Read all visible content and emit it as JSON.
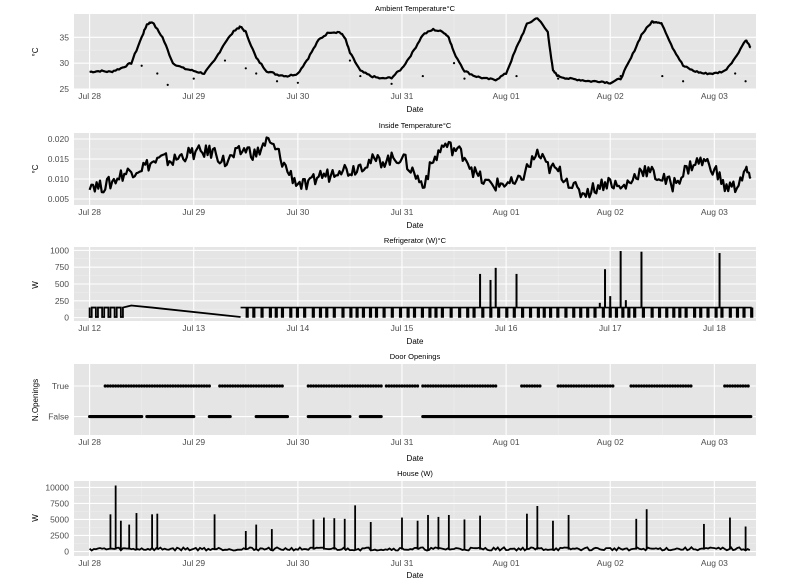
{
  "colors": {
    "panel": "#e5e5e5",
    "grid_major": "#ffffff",
    "grid_minor": "#f0f0f0",
    "line": "#000000",
    "text": "#4d4d4d",
    "title": "#000000"
  },
  "chart_data": [
    {
      "type": "line",
      "title": "Ambient Temperature°C",
      "xlabel": "Date",
      "ylabel": "°C",
      "x_ticks": [
        "Jul 28",
        "Jul 29",
        "Jul 30",
        "Jul 31",
        "Aug 01",
        "Aug 02",
        "Aug 03"
      ],
      "xlim": [
        -0.15,
        6.4
      ],
      "y_ticks": [
        "25",
        "30",
        "35"
      ],
      "y_tick_values": [
        25,
        30,
        35
      ],
      "ylim": [
        25,
        39.5
      ],
      "series": [
        {
          "name": "Ambient Temperature",
          "x": [
            0,
            0.1,
            0.2,
            0.3,
            0.4,
            0.5,
            0.55,
            0.6,
            0.7,
            0.8,
            0.9,
            1.0,
            1.1,
            1.2,
            1.3,
            1.4,
            1.45,
            1.5,
            1.6,
            1.7,
            1.8,
            1.9,
            2.0,
            2.1,
            2.2,
            2.3,
            2.4,
            2.45,
            2.5,
            2.6,
            2.7,
            2.8,
            2.9,
            3.0,
            3.1,
            3.2,
            3.3,
            3.4,
            3.45,
            3.5,
            3.6,
            3.7,
            3.8,
            3.9,
            4.0,
            4.1,
            4.2,
            4.3,
            4.4,
            4.45,
            4.5,
            4.6,
            4.7,
            4.8,
            4.9,
            5.0,
            5.1,
            5.2,
            5.3,
            5.4,
            5.45,
            5.5,
            5.6,
            5.7,
            5.8,
            5.9,
            6.0,
            6.1,
            6.2,
            6.3,
            6.35
          ],
          "y": [
            28.3,
            28.5,
            28.3,
            29,
            30,
            35,
            37.5,
            38,
            35,
            30,
            29,
            28.5,
            28,
            30.5,
            34,
            36.5,
            37,
            36,
            31,
            28.5,
            27.8,
            27.5,
            28,
            31,
            34.5,
            36,
            36,
            35,
            32,
            28.5,
            27.5,
            27,
            27.2,
            29,
            32,
            35.5,
            36.5,
            36,
            35,
            32,
            28.5,
            27.5,
            27,
            26.8,
            28,
            33,
            37.5,
            38.8,
            36,
            28.5,
            27.5,
            27,
            26.8,
            26.5,
            26.5,
            26.2,
            27,
            31,
            35.5,
            38,
            38,
            37.5,
            33,
            29.5,
            28.5,
            28,
            28,
            28.5,
            31,
            34.5,
            33
          ]
        }
      ],
      "scatter": [
        [
          0.5,
          29.5
        ],
        [
          0.65,
          28
        ],
        [
          0.75,
          25.8
        ],
        [
          1.0,
          27
        ],
        [
          1.3,
          30.5
        ],
        [
          1.5,
          29
        ],
        [
          1.6,
          28
        ],
        [
          1.8,
          26.5
        ],
        [
          2.0,
          26.2
        ],
        [
          2.5,
          30.5
        ],
        [
          2.6,
          27.5
        ],
        [
          2.9,
          26
        ],
        [
          3.2,
          27.5
        ],
        [
          3.5,
          30
        ],
        [
          3.6,
          27
        ],
        [
          4.1,
          27.5
        ],
        [
          4.5,
          27
        ],
        [
          5.1,
          27.5
        ],
        [
          5.5,
          27.5
        ],
        [
          5.7,
          26.5
        ],
        [
          6.3,
          26.5
        ],
        [
          6.2,
          28
        ]
      ]
    },
    {
      "type": "line",
      "title": "Inside Temperature°C",
      "xlabel": "Date",
      "ylabel": "°C",
      "x_ticks": [
        "Jul 28",
        "Jul 29",
        "Jul 30",
        "Jul 31",
        "Aug 01",
        "Aug 02",
        "Aug 03"
      ],
      "xlim": [
        -0.15,
        6.4
      ],
      "y_ticks": [
        "0.005",
        "0.010",
        "0.015",
        "0.020"
      ],
      "y_tick_values": [
        0.005,
        0.01,
        0.015,
        0.02
      ],
      "ylim": [
        0.0035,
        0.0215
      ],
      "series": [
        {
          "name": "Inside Temperature",
          "x": [
            0,
            0.1,
            0.2,
            0.3,
            0.4,
            0.5,
            0.6,
            0.7,
            0.8,
            0.9,
            1.0,
            1.1,
            1.2,
            1.3,
            1.4,
            1.5,
            1.6,
            1.7,
            1.8,
            1.9,
            2.0,
            2.1,
            2.2,
            2.3,
            2.4,
            2.5,
            2.6,
            2.7,
            2.8,
            2.9,
            3.0,
            3.1,
            3.2,
            3.3,
            3.4,
            3.5,
            3.6,
            3.7,
            3.8,
            3.9,
            4.0,
            4.1,
            4.2,
            4.3,
            4.4,
            4.5,
            4.6,
            4.7,
            4.8,
            4.9,
            5.0,
            5.1,
            5.2,
            5.3,
            5.4,
            5.5,
            5.6,
            5.7,
            5.8,
            5.9,
            6.0,
            6.1,
            6.2,
            6.3,
            6.35
          ],
          "y": [
            0.009,
            0.008,
            0.009,
            0.011,
            0.012,
            0.013,
            0.014,
            0.015,
            0.0145,
            0.016,
            0.0165,
            0.0168,
            0.0168,
            0.014,
            0.016,
            0.0175,
            0.016,
            0.0195,
            0.017,
            0.012,
            0.009,
            0.008,
            0.011,
            0.011,
            0.013,
            0.012,
            0.0135,
            0.0145,
            0.0145,
            0.015,
            0.0155,
            0.012,
            0.0085,
            0.0145,
            0.0185,
            0.0175,
            0.016,
            0.0115,
            0.009,
            0.0085,
            0.009,
            0.0085,
            0.0125,
            0.0165,
            0.013,
            0.012,
            0.0095,
            0.0065,
            0.007,
            0.0085,
            0.0095,
            0.0075,
            0.0095,
            0.0125,
            0.0115,
            0.01,
            0.0085,
            0.0115,
            0.014,
            0.0145,
            0.0125,
            0.008,
            0.008,
            0.012,
            0.0105
          ]
        }
      ]
    },
    {
      "type": "line",
      "title": "Refrigerator (W)°C",
      "xlabel": "Date",
      "ylabel": "W",
      "x_ticks": [
        "Jul 12",
        "Jul 13",
        "Jul 14",
        "Jul 15",
        "Jul 16",
        "Jul 17",
        "Jul 18"
      ],
      "xlim": [
        -0.15,
        6.4
      ],
      "y_ticks": [
        "0",
        "250",
        "500",
        "750",
        "1000"
      ],
      "y_tick_values": [
        0,
        250,
        500,
        750,
        1000
      ],
      "ylim": [
        -50,
        1050
      ],
      "baseline_on": 150,
      "baseline_off": 10,
      "spikes": [
        [
          3.75,
          650
        ],
        [
          3.85,
          560
        ],
        [
          3.9,
          740
        ],
        [
          4.1,
          650
        ],
        [
          4.95,
          720
        ],
        [
          5.0,
          320
        ],
        [
          5.1,
          990
        ],
        [
          5.3,
          980
        ],
        [
          6.05,
          960
        ],
        [
          4.9,
          220
        ],
        [
          5.15,
          260
        ]
      ],
      "segments": [
        [
          0,
          150
        ],
        [
          0.35,
          150
        ],
        [
          0.4,
          180
        ],
        [
          0.6,
          150
        ],
        [
          1.45,
          10
        ]
      ]
    },
    {
      "type": "scatter",
      "title": "Door Openings",
      "xlabel": "Date",
      "ylabel": "N.Openings",
      "x_ticks": [
        "Jul 28",
        "Jul 29",
        "Jul 30",
        "Jul 31",
        "Aug 01",
        "Aug 02",
        "Aug 03"
      ],
      "xlim": [
        -0.15,
        6.4
      ],
      "y_ticks": [
        "False",
        "True"
      ],
      "true_ranges": [
        [
          0.15,
          1.15
        ],
        [
          1.25,
          1.85
        ],
        [
          2.1,
          2.8
        ],
        [
          2.85,
          3.15
        ],
        [
          3.2,
          3.9
        ],
        [
          4.15,
          4.35
        ],
        [
          4.5,
          5.05
        ],
        [
          5.2,
          5.8
        ],
        [
          6.1,
          6.35
        ]
      ],
      "false_ranges": [
        [
          0,
          0.5
        ],
        [
          0.55,
          1.0
        ],
        [
          1.15,
          1.35
        ],
        [
          1.6,
          1.9
        ],
        [
          2.1,
          2.5
        ],
        [
          2.6,
          2.8
        ],
        [
          3.2,
          6.35
        ]
      ]
    },
    {
      "type": "line",
      "title": "House (W)",
      "xlabel": "Date",
      "ylabel": "W",
      "x_ticks": [
        "Jul 28",
        "Jul 29",
        "Jul 30",
        "Jul 31",
        "Aug 01",
        "Aug 02",
        "Aug 03"
      ],
      "xlim": [
        -0.15,
        6.4
      ],
      "y_ticks": [
        "0",
        "2500",
        "5000",
        "7500",
        "10000"
      ],
      "y_tick_values": [
        0,
        2500,
        5000,
        7500,
        10000
      ],
      "ylim": [
        -700,
        11000
      ],
      "baseline": 300,
      "spikes": [
        [
          0.2,
          5800
        ],
        [
          0.25,
          10300
        ],
        [
          0.3,
          4800
        ],
        [
          0.38,
          4200
        ],
        [
          0.45,
          6000
        ],
        [
          0.6,
          5800
        ],
        [
          0.65,
          5900
        ],
        [
          1.2,
          5800
        ],
        [
          1.5,
          3200
        ],
        [
          1.6,
          4200
        ],
        [
          1.75,
          3500
        ],
        [
          2.15,
          5000
        ],
        [
          2.25,
          5300
        ],
        [
          2.35,
          5200
        ],
        [
          2.45,
          5100
        ],
        [
          2.55,
          7200
        ],
        [
          2.7,
          4600
        ],
        [
          3.0,
          5300
        ],
        [
          3.15,
          4800
        ],
        [
          3.25,
          5700
        ],
        [
          3.35,
          5400
        ],
        [
          3.45,
          5700
        ],
        [
          3.6,
          5000
        ],
        [
          3.75,
          5600
        ],
        [
          4.2,
          5900
        ],
        [
          4.3,
          7100
        ],
        [
          4.45,
          4800
        ],
        [
          4.6,
          5700
        ],
        [
          5.25,
          5100
        ],
        [
          5.35,
          6600
        ],
        [
          5.9,
          4300
        ],
        [
          6.15,
          5300
        ],
        [
          6.3,
          3900
        ]
      ]
    }
  ]
}
